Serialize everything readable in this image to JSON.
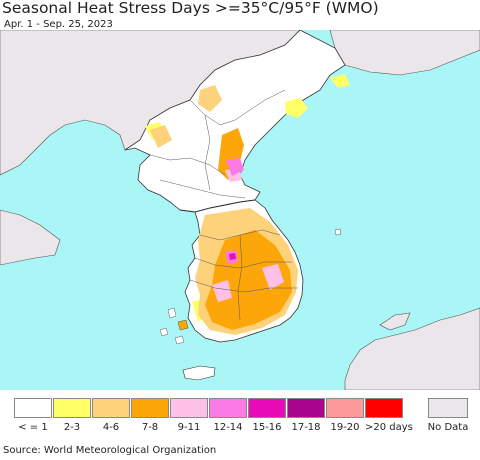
{
  "title": "Seasonal Heat Stress Days >=35°C/95°F (WMO)",
  "subtitle": "Apr. 1 - Sep. 25, 2023",
  "source": "Source: World Meteorological Organization",
  "colors": {
    "sea": "#aaf5f5",
    "foreign_land": "#eae6ea",
    "korea_land": "#ffffff",
    "border": "#333333"
  },
  "legend": [
    {
      "label": "< = 1",
      "color": "#ffffff"
    },
    {
      "label": "2-3",
      "color": "#ffff66"
    },
    {
      "label": "4-6",
      "color": "#fdd27a"
    },
    {
      "label": "7-8",
      "color": "#fda60a"
    },
    {
      "label": "9-11",
      "color": "#ffc0e8"
    },
    {
      "label": "12-14",
      "color": "#fa7ae6"
    },
    {
      "label": "15-16",
      "color": "#e80cb8"
    },
    {
      "label": "17-18",
      "color": "#a8048c"
    },
    {
      "label": "19-20",
      "color": "#fc9a9a"
    },
    {
      "label": ">20 days",
      "color": "#ff0000"
    }
  ],
  "no_data": {
    "label": "No Data",
    "color": "#eae6ea"
  }
}
